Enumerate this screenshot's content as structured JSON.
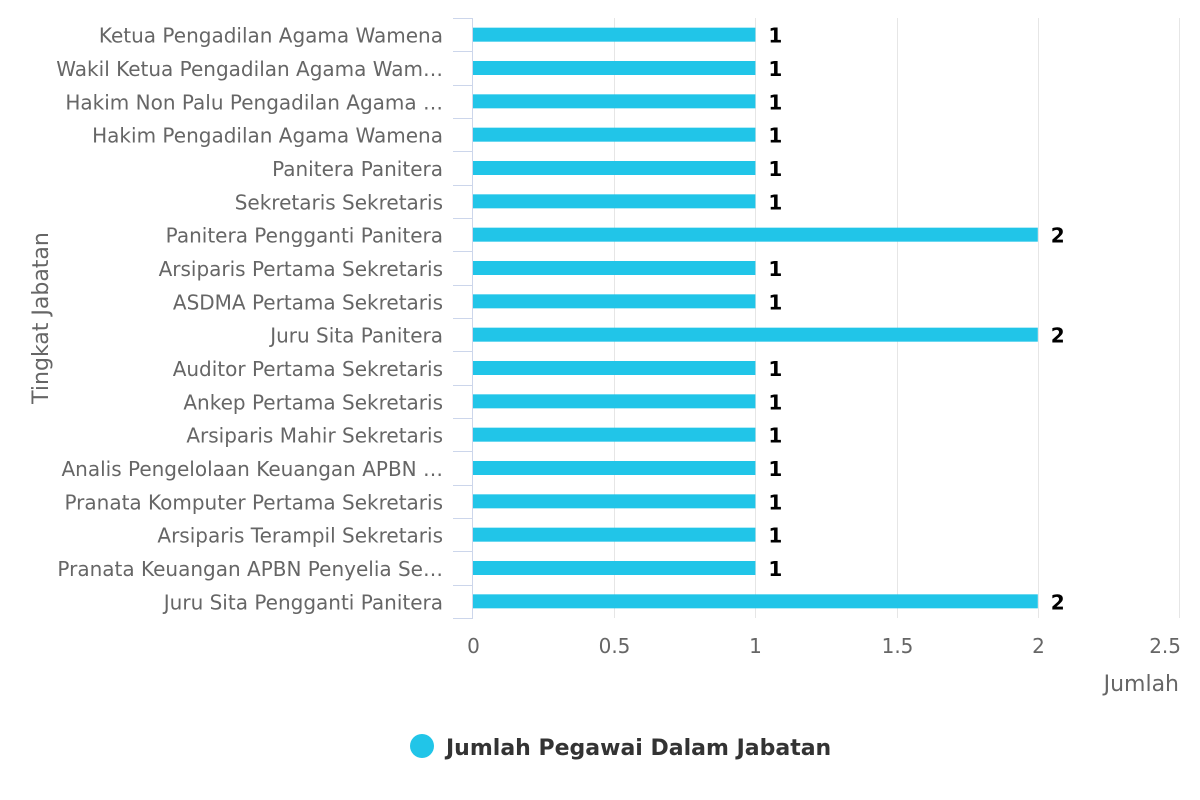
{
  "chart_data": {
    "type": "bar",
    "orientation": "horizontal",
    "categories": [
      "Ketua Pengadilan Agama Wamena",
      "Wakil Ketua Pengadilan Agama Wam…",
      "Hakim Non Palu Pengadilan Agama …",
      "Hakim Pengadilan Agama Wamena",
      "Panitera Panitera",
      "Sekretaris Sekretaris",
      "Panitera Pengganti Panitera",
      "Arsiparis Pertama Sekretaris",
      "ASDMA Pertama Sekretaris",
      "Juru Sita Panitera",
      "Auditor Pertama Sekretaris",
      "Ankep Pertama Sekretaris",
      "Arsiparis Mahir Sekretaris",
      "Analis Pengelolaan Keuangan APBN …",
      "Pranata Komputer Pertama Sekretaris",
      "Arsiparis Terampil Sekretaris",
      "Pranata Keuangan APBN Penyelia Se…",
      "Juru Sita Pengganti Panitera"
    ],
    "series": [
      {
        "name": "Jumlah Pegawai Dalam Jabatan",
        "values": [
          1,
          1,
          1,
          1,
          1,
          1,
          2,
          1,
          1,
          2,
          1,
          1,
          1,
          1,
          1,
          1,
          1,
          2
        ],
        "color": "#21c5e8"
      }
    ],
    "xlabel": "Jumlah",
    "ylabel": "Tingkat Jabatan",
    "xlim": [
      0,
      2.5
    ],
    "xticks": [
      "0",
      "0.5",
      "1",
      "1.5",
      "2",
      "2.5"
    ],
    "tick_values": [
      0,
      0.5,
      1,
      1.5,
      2,
      2.5
    ],
    "grid": true,
    "legend_position": "bottom-center",
    "data_labels": true
  }
}
